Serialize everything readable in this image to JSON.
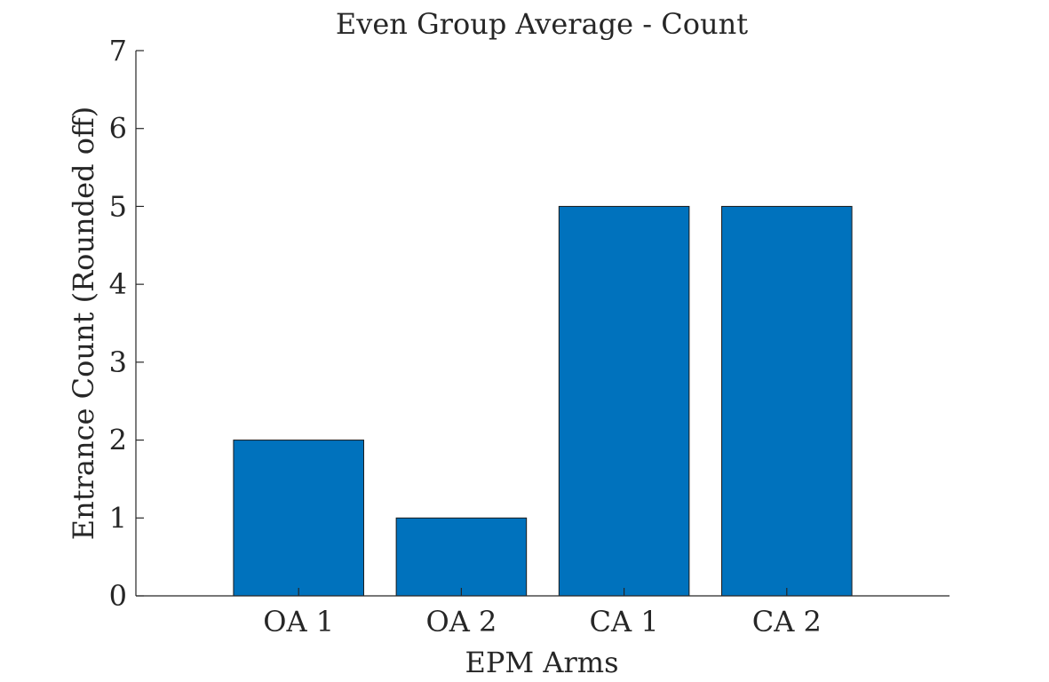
{
  "chart_data": {
    "type": "bar",
    "title": "Even Group Average - Count",
    "xlabel": "EPM Arms",
    "ylabel": "Entrance Count (Rounded off)",
    "categories": [
      "OA 1",
      "OA 2",
      "CA 1",
      "CA 2"
    ],
    "values": [
      2,
      1,
      5,
      5
    ],
    "ylim": [
      0,
      7
    ],
    "yticks": [
      0,
      1,
      2,
      3,
      4,
      5,
      6,
      7
    ],
    "grid": false,
    "bar_color": "#0072BD"
  }
}
